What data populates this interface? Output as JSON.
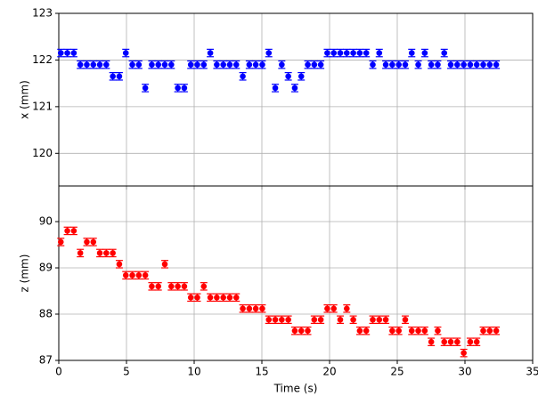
{
  "chart_data": [
    {
      "type": "errorbar",
      "ylabel": "x (mm)",
      "x": [
        0.15,
        0.63,
        1.11,
        1.59,
        2.07,
        2.55,
        3.03,
        3.51,
        3.99,
        4.47,
        4.95,
        5.43,
        5.91,
        6.39,
        6.87,
        7.35,
        7.83,
        8.31,
        8.79,
        9.27,
        9.75,
        10.23,
        10.71,
        11.19,
        11.67,
        12.15,
        12.63,
        13.11,
        13.59,
        14.07,
        14.55,
        15.03,
        15.51,
        15.99,
        16.47,
        16.95,
        17.43,
        17.91,
        18.39,
        18.87,
        19.35,
        19.83,
        20.31,
        20.79,
        21.27,
        21.75,
        22.23,
        22.71,
        23.19,
        23.67,
        24.15,
        24.63,
        25.11,
        25.59,
        26.07,
        26.55,
        27.03,
        27.51,
        27.99,
        28.47,
        28.95,
        29.43,
        29.91,
        30.39,
        30.87,
        31.35,
        31.83,
        32.31
      ],
      "series": [
        {
          "color": "#0000ff",
          "error": 0.08,
          "values": [
            122.15,
            122.15,
            122.15,
            121.9,
            121.9,
            121.9,
            121.9,
            121.9,
            121.65,
            121.65,
            122.15,
            121.9,
            121.9,
            121.4,
            121.9,
            121.9,
            121.9,
            121.9,
            121.4,
            121.4,
            121.9,
            121.9,
            121.9,
            122.15,
            121.9,
            121.9,
            121.9,
            121.9,
            121.65,
            121.9,
            121.9,
            121.9,
            122.15,
            121.4,
            121.9,
            121.65,
            121.4,
            121.65,
            121.9,
            121.9,
            121.9,
            122.15,
            122.15,
            122.15,
            122.15,
            122.15,
            122.15,
            122.15,
            121.9,
            122.15,
            121.9,
            121.9,
            121.9,
            121.9,
            122.15,
            121.9,
            122.15,
            121.9,
            121.9,
            122.15,
            121.9,
            121.9,
            121.9,
            121.9,
            121.9,
            121.9,
            121.9,
            121.9
          ]
        }
      ],
      "xlim": [
        0,
        35
      ],
      "xticks": [
        0,
        5,
        10,
        15,
        20,
        25,
        30,
        35
      ],
      "ylim": [
        119.3,
        123
      ],
      "yticks": [
        120,
        121,
        122,
        123
      ],
      "grid": true
    },
    {
      "type": "errorbar",
      "ylabel": "z (mm)",
      "xlabel": "Time (s)",
      "x": [
        0.15,
        0.63,
        1.11,
        1.59,
        2.07,
        2.55,
        3.03,
        3.51,
        3.99,
        4.47,
        4.95,
        5.43,
        5.91,
        6.39,
        6.87,
        7.35,
        7.83,
        8.31,
        8.79,
        9.27,
        9.75,
        10.23,
        10.71,
        11.19,
        11.67,
        12.15,
        12.63,
        13.11,
        13.59,
        14.07,
        14.55,
        15.03,
        15.51,
        15.99,
        16.47,
        16.95,
        17.43,
        17.91,
        18.39,
        18.87,
        19.35,
        19.83,
        20.31,
        20.79,
        21.27,
        21.75,
        22.23,
        22.71,
        23.19,
        23.67,
        24.15,
        24.63,
        25.11,
        25.59,
        26.07,
        26.55,
        27.03,
        27.51,
        27.99,
        28.47,
        28.95,
        29.43,
        29.91,
        30.39,
        30.87,
        31.35,
        31.83,
        32.31
      ],
      "series": [
        {
          "color": "#ff0000",
          "error": 0.08,
          "values": [
            89.56,
            89.8,
            89.8,
            89.32,
            89.56,
            89.56,
            89.32,
            89.32,
            89.32,
            89.08,
            88.84,
            88.84,
            88.84,
            88.84,
            88.6,
            88.6,
            89.08,
            88.6,
            88.6,
            88.6,
            88.36,
            88.36,
            88.6,
            88.36,
            88.36,
            88.36,
            88.36,
            88.36,
            88.12,
            88.12,
            88.12,
            88.12,
            87.88,
            87.88,
            87.88,
            87.88,
            87.64,
            87.64,
            87.64,
            87.88,
            87.88,
            88.12,
            88.12,
            87.88,
            88.12,
            87.88,
            87.64,
            87.64,
            87.88,
            87.88,
            87.88,
            87.64,
            87.64,
            87.88,
            87.64,
            87.64,
            87.64,
            87.4,
            87.64,
            87.4,
            87.4,
            87.4,
            87.16,
            87.4,
            87.4,
            87.64,
            87.64,
            87.64
          ]
        }
      ],
      "xlim": [
        0,
        35
      ],
      "xticks": [
        0,
        5,
        10,
        15,
        20,
        25,
        30,
        35
      ],
      "ylim": [
        87,
        90.77
      ],
      "yticks": [
        87,
        88,
        89,
        90
      ],
      "grid": true
    }
  ]
}
